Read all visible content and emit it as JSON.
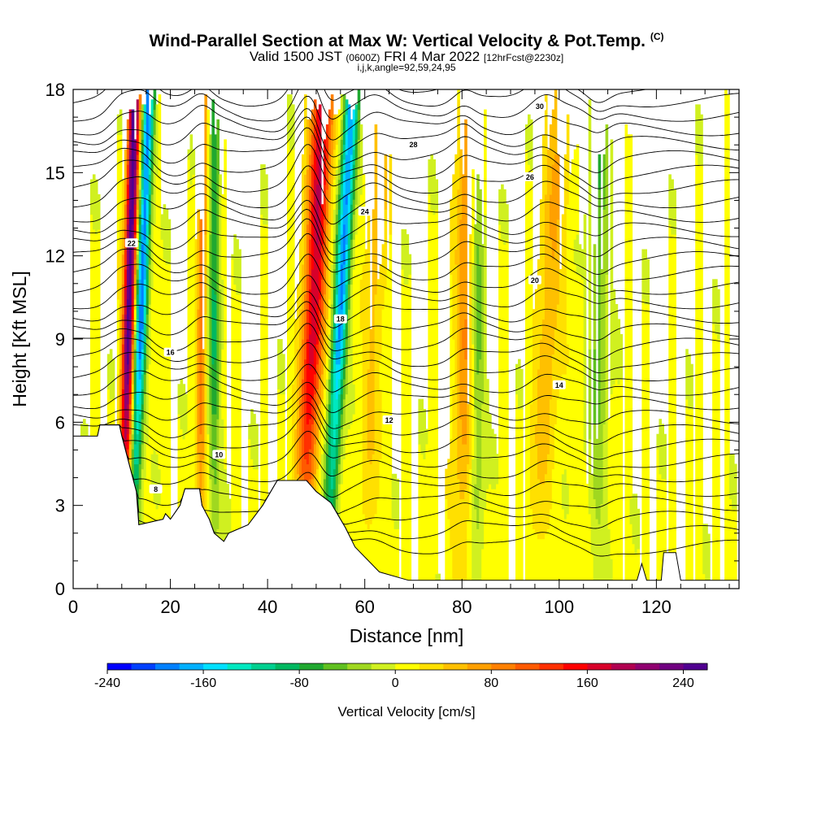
{
  "header": {
    "title_main": "Wind-Parallel Section at Max W: Vertical Velocity & Pot.Temp.",
    "title_copyright": "(C)",
    "valid_prefix": "Valid 1500 JST",
    "valid_utc": "(0600Z)",
    "valid_date": "FRI 4 Mar 2022",
    "valid_fcst": "[12hrFcst@2230z]",
    "indices": "i,j,k,angle=92,59,24,95"
  },
  "colorbar": {
    "label": "Vertical Velocity [cm/s]",
    "min": -240,
    "max": 260,
    "step": 20,
    "tick_labels": [
      "-240",
      "-160",
      "-80",
      "0",
      "80",
      "160",
      "240"
    ],
    "tick_values": [
      -240,
      -160,
      -80,
      0,
      80,
      160,
      240
    ],
    "colors": [
      "#0000ff",
      "#0040ff",
      "#0080ff",
      "#00b0ff",
      "#00e0ff",
      "#00e8c0",
      "#00d090",
      "#00b860",
      "#20a830",
      "#60c020",
      "#a0d820",
      "#d0f020",
      "#ffff00",
      "#ffe000",
      "#ffc000",
      "#ffa000",
      "#ff8000",
      "#ff5a00",
      "#ff3000",
      "#ff0000",
      "#d8002a",
      "#b00050",
      "#900070",
      "#700080",
      "#500090"
    ]
  },
  "chart_data": {
    "type": "heatmap",
    "title": "Wind-Parallel Section at Max W: Vertical Velocity & Pot.Temp.",
    "xlabel": "Distance [nm]",
    "ylabel": "Height [Kft MSL]",
    "xlim": [
      0,
      137
    ],
    "ylim": [
      0,
      18
    ],
    "x_ticks": [
      0,
      20,
      40,
      60,
      80,
      100,
      120
    ],
    "y_ticks": [
      0,
      3,
      6,
      9,
      12,
      15,
      18
    ],
    "grid": false,
    "field": "Vertical Velocity [cm/s]",
    "contour_field": "Pot.Temp.",
    "contour_levels": [
      8,
      10,
      12,
      14,
      16,
      18,
      20,
      22,
      24,
      26,
      28,
      30
    ],
    "updraft_bands": [
      {
        "x_base": 10,
        "tilt": 0.15,
        "width": 1.2,
        "peak": 250
      },
      {
        "x_base": 47,
        "tilt": 0.25,
        "width": 2.2,
        "peak": 170
      },
      {
        "x_base": 26,
        "tilt": 0.05,
        "width": 1.0,
        "peak": 90
      },
      {
        "x_base": 80,
        "tilt": 0.1,
        "width": 2.2,
        "peak": 80
      },
      {
        "x_base": 95,
        "tilt": 0.3,
        "width": 2.5,
        "peak": 50
      },
      {
        "x_base": 60,
        "tilt": 0.2,
        "width": 2.0,
        "peak": 40
      }
    ],
    "downdraft_bands": [
      {
        "x_base": 12,
        "tilt": 0.2,
        "width": 1.2,
        "peak": -200
      },
      {
        "x_base": 52,
        "tilt": 0.3,
        "width": 1.5,
        "peak": -190
      },
      {
        "x_base": 29,
        "tilt": 0.0,
        "width": 1.2,
        "peak": -90
      },
      {
        "x_base": 83,
        "tilt": 0.0,
        "width": 1.5,
        "peak": -80
      },
      {
        "x_base": 108,
        "tilt": 0.0,
        "width": 2.0,
        "peak": -60
      }
    ],
    "terrain_kft": [
      [
        0,
        5.5
      ],
      [
        5,
        5.5
      ],
      [
        5.5,
        5.9
      ],
      [
        9.5,
        5.9
      ],
      [
        10,
        5.5
      ],
      [
        11.5,
        4.5
      ],
      [
        13,
        3.5
      ],
      [
        13.5,
        2.3
      ],
      [
        18.5,
        2.5
      ],
      [
        19,
        2.7
      ],
      [
        20,
        2.5
      ],
      [
        22,
        3.0
      ],
      [
        23,
        3.6
      ],
      [
        26,
        3.6
      ],
      [
        26.5,
        3.0
      ],
      [
        28,
        2.5
      ],
      [
        29,
        2.0
      ],
      [
        31,
        1.7
      ],
      [
        32,
        2.0
      ],
      [
        36,
        2.3
      ],
      [
        39,
        3.0
      ],
      [
        42,
        3.9
      ],
      [
        48,
        3.9
      ],
      [
        50,
        3.5
      ],
      [
        53,
        3.1
      ],
      [
        56,
        2.2
      ],
      [
        58,
        1.5
      ],
      [
        63,
        0.6
      ],
      [
        69,
        0.3
      ],
      [
        116,
        0.3
      ],
      [
        117,
        0.9
      ],
      [
        118,
        0.3
      ],
      [
        121,
        0.3
      ],
      [
        121.5,
        1.3
      ],
      [
        124,
        1.3
      ],
      [
        125,
        0.3
      ],
      [
        137,
        0.3
      ]
    ]
  }
}
